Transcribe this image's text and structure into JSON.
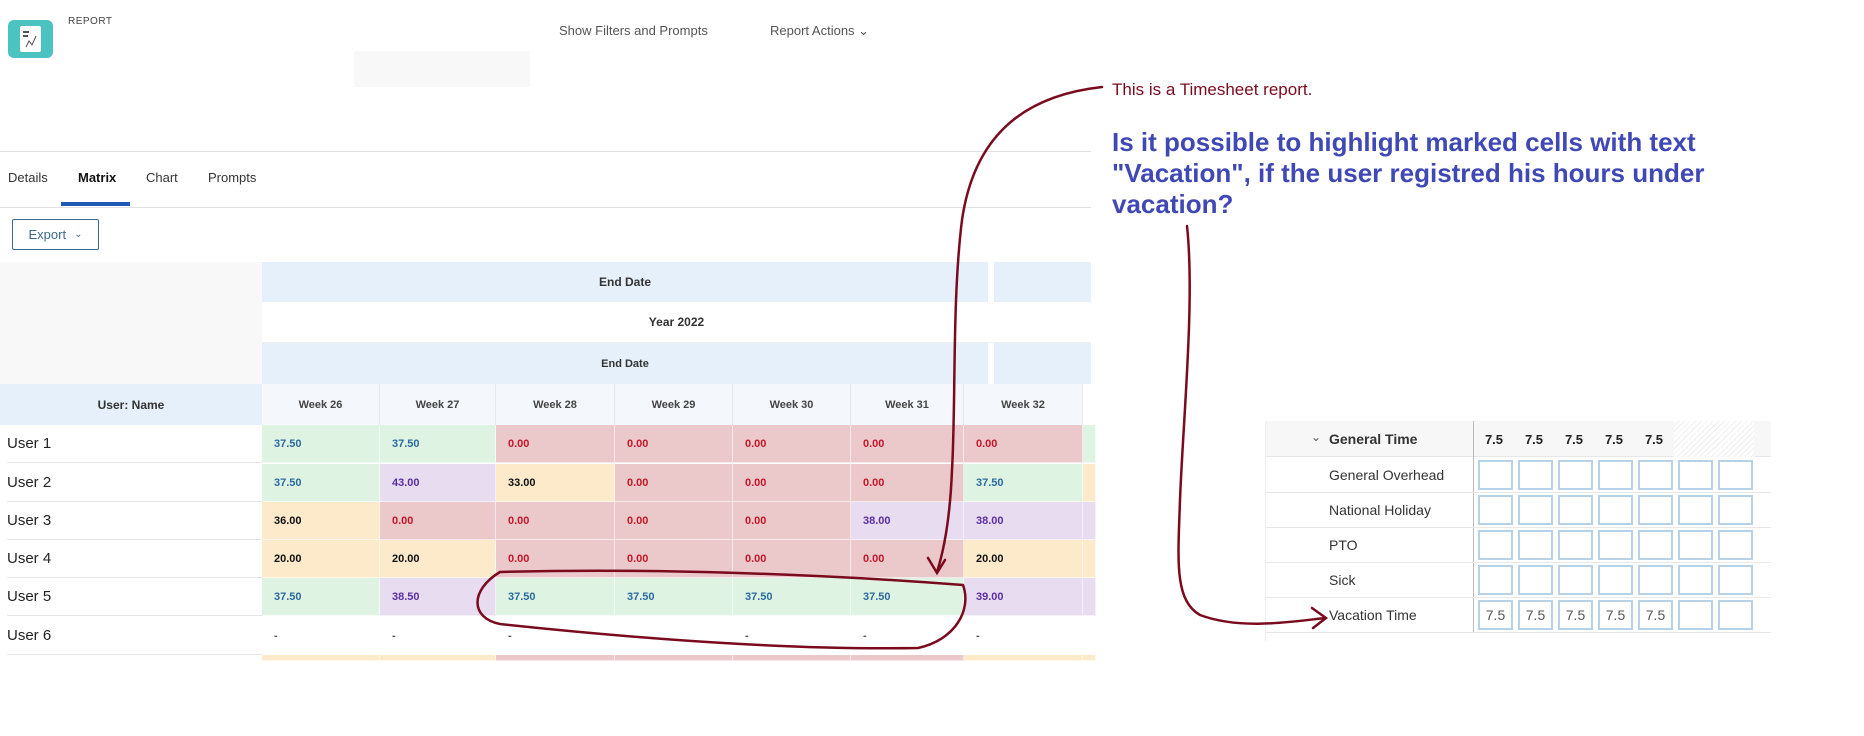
{
  "header": {
    "label": "REPORT",
    "show_filters": "Show Filters and Prompts",
    "report_actions": "Report Actions"
  },
  "tabs": [
    {
      "label": "Details"
    },
    {
      "label": "Matrix",
      "active": true
    },
    {
      "label": "Chart"
    },
    {
      "label": "Prompts"
    }
  ],
  "toolbar": {
    "export": "Export"
  },
  "matrix": {
    "group_header": "End Date",
    "year_header": "Year 2022",
    "sub_header": "End Date",
    "row_header": "User: Name",
    "weeks": [
      "Week 26",
      "Week 27",
      "Week 28",
      "Week 29",
      "Week 30",
      "Week 31",
      "Week 32"
    ],
    "rows": [
      {
        "name": "User 1",
        "values": [
          "37.50",
          "37.50",
          "0.00",
          "0.00",
          "0.00",
          "0.00",
          "0.00"
        ],
        "colors": [
          "g",
          "g",
          "r",
          "r",
          "r",
          "r",
          "r",
          "g"
        ]
      },
      {
        "name": "User 2",
        "values": [
          "37.50",
          "43.00",
          "33.00",
          "0.00",
          "0.00",
          "0.00",
          "37.50"
        ],
        "colors": [
          "g",
          "p",
          "o",
          "r",
          "r",
          "r",
          "g",
          "o"
        ]
      },
      {
        "name": "User 3",
        "values": [
          "36.00",
          "0.00",
          "0.00",
          "0.00",
          "0.00",
          "38.00",
          "38.00"
        ],
        "colors": [
          "o",
          "r",
          "r",
          "r",
          "r",
          "p",
          "p",
          "p"
        ]
      },
      {
        "name": "User 4",
        "values": [
          "20.00",
          "20.00",
          "0.00",
          "0.00",
          "0.00",
          "0.00",
          "20.00"
        ],
        "colors": [
          "o",
          "o",
          "r",
          "r",
          "r",
          "r",
          "o",
          "o"
        ]
      },
      {
        "name": "User 5",
        "values": [
          "37.50",
          "38.50",
          "37.50",
          "37.50",
          "37.50",
          "37.50",
          "39.00"
        ],
        "colors": [
          "g",
          "p",
          "g",
          "g",
          "g",
          "g",
          "p",
          "p"
        ]
      },
      {
        "name": "User 6",
        "values": [
          "-",
          "-",
          "-",
          "-",
          "-",
          "-",
          "-"
        ],
        "colors": [
          "w",
          "w",
          "w",
          "w",
          "w",
          "w",
          "w",
          "w"
        ]
      }
    ],
    "partial_row_colors": [
      "o",
      "o",
      "r",
      "r",
      "r",
      "r",
      "o",
      "o"
    ],
    "cell_colors": {
      "g": "#def3e2",
      "r": "#ebc8ca",
      "o": "#fdeaca",
      "p": "#e8dcf1"
    }
  },
  "annotations": {
    "note": "This is a Timesheet report.",
    "question": "Is it possible to highlight marked cells with text \"Vacation\", if the user registred his hours under vacation?",
    "ink_color": "#7a0b1e"
  },
  "timesheet": {
    "group": "General Time",
    "totals": [
      "7.5",
      "7.5",
      "7.5",
      "7.5",
      "7.5",
      "",
      ""
    ],
    "rows": [
      {
        "label": "General Overhead",
        "values": [
          "",
          "",
          "",
          "",
          "",
          "",
          ""
        ]
      },
      {
        "label": "National Holiday",
        "values": [
          "",
          "",
          "",
          "",
          "",
          "",
          ""
        ]
      },
      {
        "label": "PTO",
        "values": [
          "",
          "",
          "",
          "",
          "",
          "",
          ""
        ]
      },
      {
        "label": "Sick",
        "values": [
          "",
          "",
          "",
          "",
          "",
          "",
          ""
        ]
      },
      {
        "label": "Vacation Time",
        "values": [
          "7.5",
          "7.5",
          "7.5",
          "7.5",
          "7.5",
          "",
          ""
        ]
      }
    ]
  }
}
